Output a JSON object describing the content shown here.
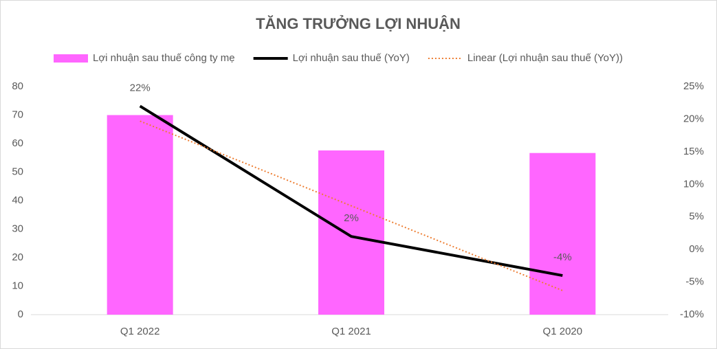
{
  "chart_data": {
    "type": "combo",
    "title": "TĂNG TRƯỞNG LỢI NHUẬN",
    "categories": [
      "Q1 2022",
      "Q1 2021",
      "Q1 2020"
    ],
    "series": [
      {
        "name": "Lợi nhuận sau thuế công ty mẹ",
        "type": "bar",
        "color": "#ff66ff",
        "values": [
          70,
          57.6,
          56.7
        ]
      },
      {
        "name": "Lợi nhuận sau thuế (YoY)",
        "type": "line",
        "axis": "y2",
        "color": "#000000",
        "values": [
          22,
          2,
          -4
        ],
        "value_labels": [
          "22%",
          "2%",
          "-4%"
        ]
      },
      {
        "name": "Linear (Lợi nhuận sau thuế (YoY))",
        "type": "line",
        "axis": "y2",
        "color": "#ed7d31",
        "line_style": "dotted",
        "values": [
          19.7,
          6.7,
          -6.3
        ]
      }
    ],
    "ylim": [
      0,
      80
    ],
    "yticks": [
      0,
      10,
      20,
      30,
      40,
      50,
      60,
      70,
      80
    ],
    "y2lim": [
      -10,
      25
    ],
    "y2ticks": [
      {
        "value": -10,
        "label": "-10%"
      },
      {
        "value": -5,
        "label": "-5%"
      },
      {
        "value": 0,
        "label": "0%"
      },
      {
        "value": 5,
        "label": "5%"
      },
      {
        "value": 10,
        "label": "10%"
      },
      {
        "value": 15,
        "label": "15%"
      },
      {
        "value": 20,
        "label": "20%"
      },
      {
        "value": 25,
        "label": "25%"
      }
    ],
    "legend": "top",
    "grid": false
  }
}
